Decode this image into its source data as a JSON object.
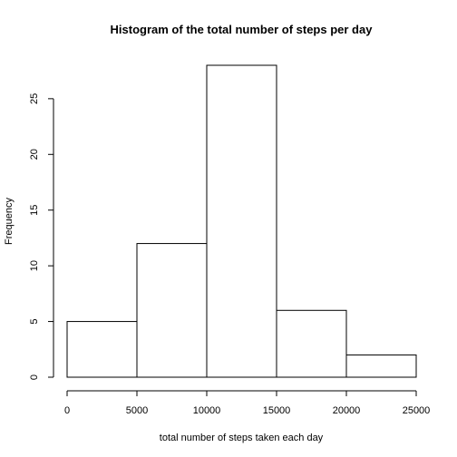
{
  "chart_data": {
    "type": "bar",
    "title": "Histogram of the total number of steps per day",
    "xlabel": "total number of steps taken each day",
    "ylabel": "Frequency",
    "bins": [
      {
        "start": 0,
        "end": 5000,
        "count": 5
      },
      {
        "start": 5000,
        "end": 10000,
        "count": 12
      },
      {
        "start": 10000,
        "end": 15000,
        "count": 28
      },
      {
        "start": 15000,
        "end": 20000,
        "count": 6
      },
      {
        "start": 20000,
        "end": 25000,
        "count": 2
      }
    ],
    "xlim": [
      0,
      25000
    ],
    "ylim": [
      0,
      28
    ],
    "x_ticks": [
      0,
      5000,
      10000,
      15000,
      20000,
      25000
    ],
    "y_ticks": [
      0,
      5,
      10,
      15,
      20,
      25
    ],
    "grid": false,
    "legend": "none"
  }
}
